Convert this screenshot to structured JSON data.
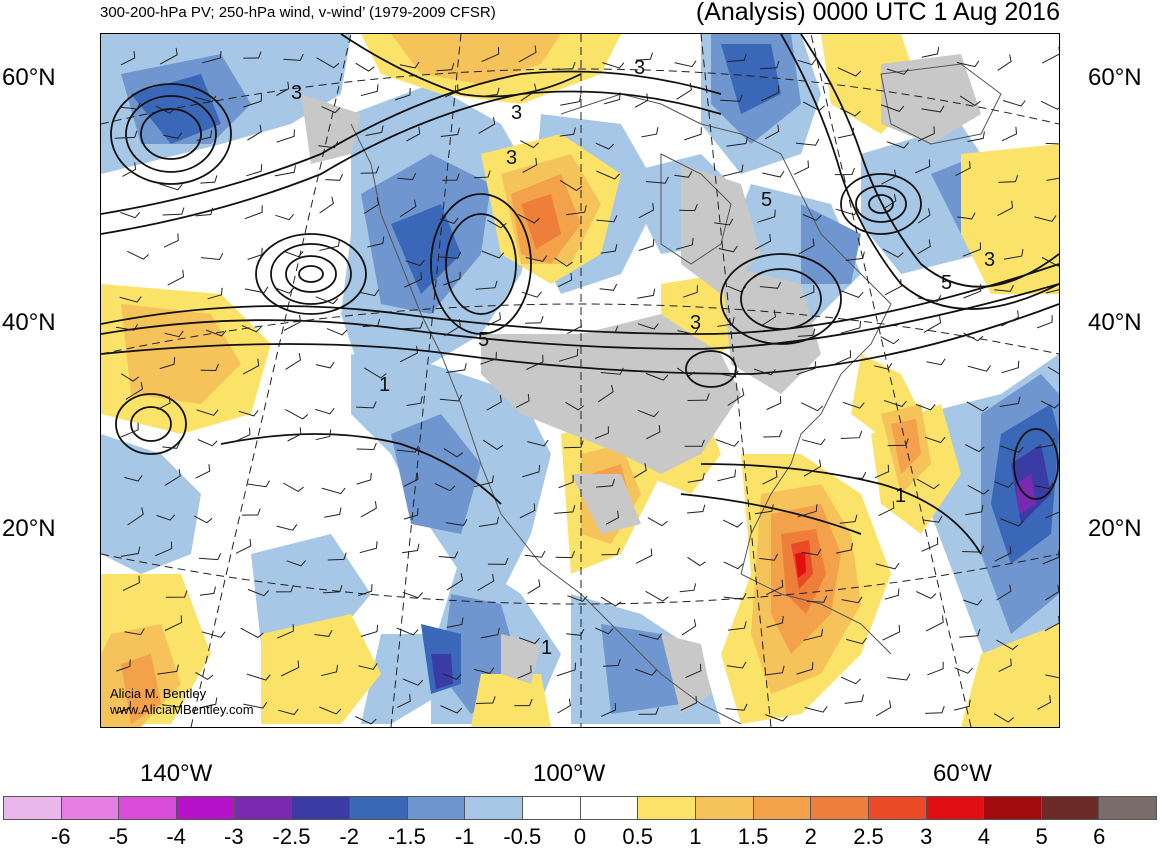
{
  "titles": {
    "left": "300-200-hPa PV; 250-hPa wind, v-wind’ (1979-2009 CFSR)",
    "right": "(Analysis) 0000 UTC 1 Aug 2016"
  },
  "lat_labels": [
    "60°N",
    "40°N",
    "20°N"
  ],
  "lon_labels": [
    "140°W",
    "100°W",
    "60°W"
  ],
  "credit": {
    "name": "Alicia M. Bentley",
    "url": "www.AliciaMBentley.com"
  },
  "contour_labels": [
    "3",
    "3",
    "3",
    "3",
    "5",
    "5",
    "3",
    "1",
    "1",
    "5",
    "3",
    "1"
  ],
  "colorbar": {
    "labels": [
      "-6",
      "-5",
      "-4",
      "-3",
      "-2.5",
      "-2",
      "-1.5",
      "-1",
      "-0.5",
      "0",
      "0.5",
      "1",
      "1.5",
      "2",
      "2.5",
      "3",
      "4",
      "5",
      "6"
    ],
    "colors": [
      "#e9b7e9",
      "#e57ee5",
      "#d94bd9",
      "#b512c9",
      "#7a2ab0",
      "#3b3ba6",
      "#3a67b8",
      "#6f96ce",
      "#a6c7e6",
      "#ffffff",
      "#ffffff",
      "#fbe36a",
      "#f6c25a",
      "#f3a14a",
      "#ee7f3a",
      "#ea4a25",
      "#e20f12",
      "#a20b0d",
      "#6e2a26",
      "#7a6d69"
    ]
  }
}
